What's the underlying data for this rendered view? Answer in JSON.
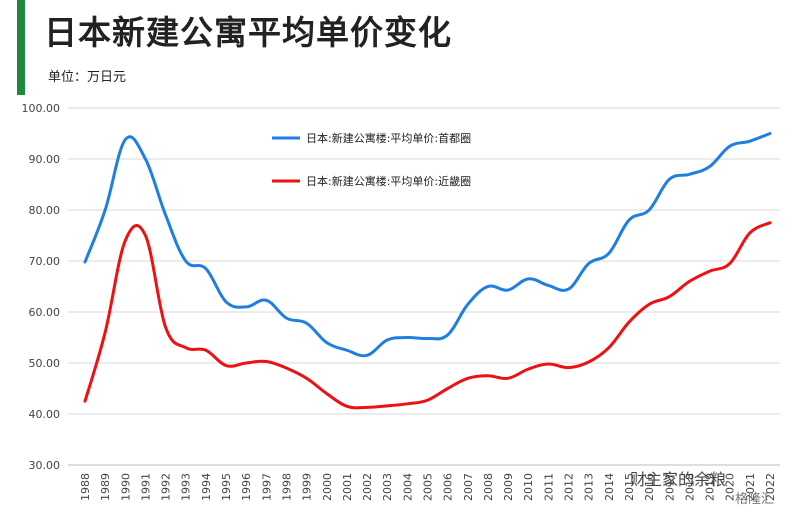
{
  "header": {
    "title": "日本新建公寓平均单价变化",
    "unit_label": "单位：万日元",
    "accent_color": "#1f8a3b"
  },
  "watermark": {
    "main": "财主家的余粮",
    "sub": "格隆汇"
  },
  "chart_data": {
    "type": "line",
    "title": "日本新建公寓平均单价变化",
    "ylabel": "万日元",
    "ylim": [
      30,
      100
    ],
    "yticks": [
      "30.00",
      "40.00",
      "50.00",
      "60.00",
      "70.00",
      "80.00",
      "90.00",
      "100.00"
    ],
    "grid": true,
    "legend_position": "top-center",
    "categories": [
      "1988",
      "1989",
      "1990",
      "1991",
      "1992",
      "1993",
      "1994",
      "1995",
      "1996",
      "1997",
      "1998",
      "1999",
      "2000",
      "2001",
      "2002",
      "2003",
      "2004",
      "2005",
      "2006",
      "2007",
      "2008",
      "2009",
      "2010",
      "2011",
      "2012",
      "2013",
      "2014",
      "2015",
      "2016",
      "2017",
      "2018",
      "2019",
      "2020",
      "2021",
      "2022"
    ],
    "series": [
      {
        "name": "日本:新建公寓楼:平均单价:首都圈",
        "color": "#1f7fe0",
        "values": [
          69.8,
          80.0,
          93.8,
          90.0,
          79.0,
          70.0,
          68.5,
          62.0,
          61.0,
          62.3,
          58.8,
          57.8,
          54.0,
          52.5,
          51.5,
          54.5,
          55.0,
          54.8,
          55.5,
          61.5,
          65.0,
          64.3,
          66.5,
          65.2,
          64.5,
          69.5,
          71.5,
          78.0,
          80.0,
          86.0,
          87.0,
          88.5,
          92.5,
          93.5,
          95.0
        ]
      },
      {
        "name": "日本:新建公寓楼:平均单价:近畿圈",
        "color": "#ee1111",
        "values": [
          42.5,
          56.0,
          74.0,
          75.0,
          57.0,
          53.0,
          52.5,
          49.5,
          50.0,
          50.3,
          49.0,
          47.0,
          44.0,
          41.5,
          41.3,
          41.6,
          42.0,
          42.7,
          45.0,
          47.0,
          47.5,
          47.0,
          48.8,
          49.8,
          49.1,
          50.2,
          53.0,
          58.0,
          61.5,
          63.0,
          66.0,
          68.0,
          69.5,
          75.5,
          77.5
        ]
      }
    ]
  }
}
